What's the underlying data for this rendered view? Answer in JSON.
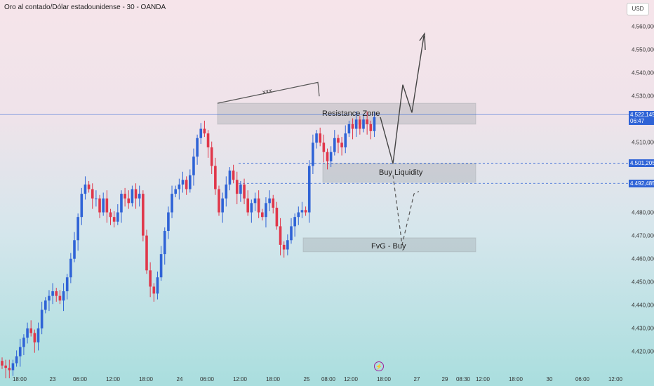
{
  "chart_data": {
    "type": "candlestick",
    "title": "Oro al contado/Dólar estadounidense - 30 - OANDA",
    "currency_button": "USD",
    "ylim": [
      4412,
      4570
    ],
    "y_ticks": [
      "4.560,000",
      "4.550,000",
      "4.540,000",
      "4.530,000",
      "4.510,000",
      "4.480,000",
      "4.470,000",
      "4.460,000",
      "4.450,000",
      "4.440,000",
      "4.430,000",
      "4.420,000"
    ],
    "x_ticks": [
      "18:00",
      "23",
      "06:00",
      "12:00",
      "18:00",
      "24",
      "06:00",
      "12:00",
      "18:00",
      "25",
      "08:00",
      "12:00",
      "18:00",
      "29",
      "27",
      "08:30",
      "12:00",
      "18:00",
      "30",
      "06:00",
      "12:00"
    ],
    "price_tags": [
      {
        "label": "4.522,145",
        "sub": "06:47"
      },
      {
        "label": "4.501,205"
      },
      {
        "label": "4.492,485"
      }
    ],
    "zones": [
      {
        "label": "Resistance Zone",
        "low": 4518,
        "high": 4527
      },
      {
        "label": "Buy Liquidity",
        "low": 4493,
        "high": 4501
      },
      {
        "label": "FvG - Buy",
        "low": 4463,
        "high": 4469
      }
    ],
    "annotation": "xxx",
    "up_color": "#2f63d6",
    "down_color": "#e0374a",
    "candles_start": 4416,
    "candles_closes": [
      4414,
      4413,
      4412,
      4415,
      4418,
      4422,
      4426,
      4430,
      4428,
      4424,
      4430,
      4438,
      4442,
      4444,
      4446,
      4444,
      4442,
      4446,
      4452,
      4460,
      4468,
      4478,
      4488,
      4492,
      4490,
      4486,
      4486,
      4480,
      4486,
      4480,
      4478,
      4476,
      4480,
      4488,
      4486,
      4484,
      4490,
      4486,
      4488,
      4470,
      4455,
      4448,
      4445,
      4452,
      4462,
      4472,
      4480,
      4488,
      4490,
      4492,
      4494,
      4490,
      4496,
      4504,
      4512,
      4516,
      4514,
      4508,
      4500,
      4490,
      4480,
      4486,
      4492,
      4498,
      4494,
      4488,
      4492,
      4486,
      4480,
      4484,
      4486,
      4480,
      4478,
      4484,
      4486,
      4482,
      4474,
      4466,
      4464,
      4468,
      4474,
      4478,
      4480,
      4481,
      4480,
      4500,
      4510,
      4514,
      4510,
      4506,
      4502,
      4506,
      4512,
      4510,
      4508,
      4514,
      4518,
      4516,
      4520,
      4516,
      4520,
      4518,
      4515,
      4521
    ],
    "projection_solid": [
      [
        4501,
        0
      ],
      [
        4534,
        0
      ],
      [
        4523,
        0
      ],
      [
        4554,
        0
      ]
    ],
    "projection_dashed": [
      [
        4496,
        0
      ],
      [
        4468,
        0
      ],
      [
        4488,
        0
      ]
    ]
  }
}
